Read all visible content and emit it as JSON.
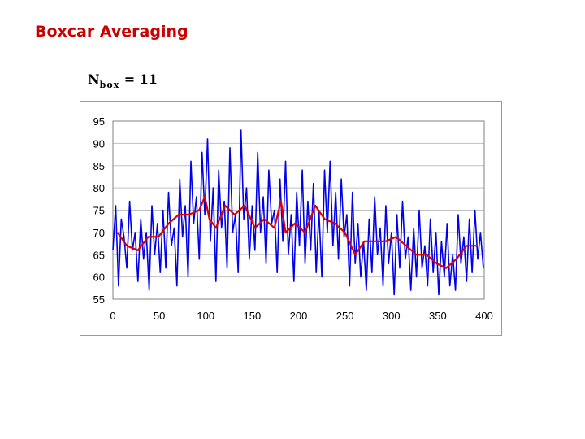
{
  "slide": {
    "title": "Boxcar Averaging",
    "param_symbol": "N",
    "param_subscript": "box",
    "param_equals": "= 11"
  },
  "colors": {
    "title": "#cc0000",
    "raw_series": "#0000ee",
    "averaged_series": "#dd0000",
    "grid": "#c0c0c0"
  },
  "chart_data": {
    "type": "line",
    "title": "",
    "xlabel": "",
    "ylabel": "",
    "xlim": [
      0,
      400
    ],
    "ylim": [
      55,
      95
    ],
    "x_ticks": [
      0,
      50,
      100,
      150,
      200,
      250,
      300,
      350,
      400
    ],
    "y_ticks": [
      55,
      60,
      65,
      70,
      75,
      80,
      85,
      90,
      95
    ],
    "grid": "horizontal",
    "legend": "none",
    "series": [
      {
        "key": "raw",
        "x": [
          0,
          3,
          6,
          9,
          12,
          15,
          18,
          21,
          24,
          27,
          30,
          33,
          36,
          39,
          42,
          45,
          48,
          51,
          54,
          57,
          60,
          63,
          66,
          69,
          72,
          75,
          78,
          81,
          84,
          87,
          90,
          93,
          96,
          99,
          102,
          105,
          108,
          111,
          114,
          117,
          120,
          123,
          126,
          129,
          132,
          135,
          138,
          141,
          144,
          147,
          150,
          153,
          156,
          159,
          162,
          165,
          168,
          171,
          174,
          177,
          180,
          183,
          186,
          189,
          192,
          195,
          198,
          201,
          204,
          207,
          210,
          213,
          216,
          219,
          222,
          225,
          228,
          231,
          234,
          237,
          240,
          243,
          246,
          249,
          252,
          255,
          258,
          261,
          264,
          267,
          270,
          273,
          276,
          279,
          282,
          285,
          288,
          291,
          294,
          297,
          300,
          303,
          306,
          309,
          312,
          315,
          318,
          321,
          324,
          327,
          330,
          333,
          336,
          339,
          342,
          345,
          348,
          351,
          354,
          357,
          360,
          363,
          366,
          369,
          372,
          375,
          378,
          381,
          384,
          387,
          390,
          393,
          396,
          399
        ],
        "values": [
          66,
          76,
          58,
          73,
          69,
          62,
          77,
          66,
          70,
          59,
          73,
          64,
          70,
          57,
          76,
          65,
          72,
          61,
          75,
          62,
          79,
          67,
          71,
          58,
          82,
          69,
          76,
          60,
          86,
          72,
          78,
          64,
          88,
          74,
          91,
          68,
          80,
          59,
          84,
          71,
          77,
          62,
          89,
          70,
          74,
          61,
          93,
          73,
          80,
          64,
          76,
          66,
          88,
          70,
          78,
          63,
          84,
          72,
          75,
          61,
          82,
          68,
          86,
          65,
          74,
          59,
          79,
          67,
          84,
          63,
          77,
          66,
          81,
          61,
          75,
          60,
          84,
          70,
          86,
          67,
          79,
          64,
          82,
          69,
          74,
          58,
          79,
          63,
          72,
          60,
          68,
          57,
          73,
          61,
          78,
          65,
          71,
          58,
          76,
          63,
          70,
          56,
          74,
          62,
          77,
          64,
          69,
          57,
          71,
          60,
          75,
          62,
          67,
          58,
          73,
          61,
          70,
          56,
          68,
          60,
          72,
          58,
          65,
          57,
          74,
          63,
          69,
          59,
          73,
          61,
          75,
          64,
          70,
          62
        ]
      },
      {
        "key": "boxcar",
        "x": [
          5,
          15,
          27,
          38,
          49,
          60,
          71,
          82,
          93,
          99,
          104,
          111,
          121,
          131,
          142,
          153,
          163,
          174,
          181,
          186,
          196,
          207,
          218,
          228,
          239,
          250,
          261,
          271,
          283,
          294,
          305,
          316,
          327,
          338,
          349,
          359,
          370,
          381,
          393
        ],
        "values": [
          70,
          67,
          66,
          69,
          69,
          72,
          74,
          74,
          75,
          78,
          73,
          71,
          76,
          74,
          76,
          71,
          73,
          71,
          77,
          70,
          72,
          70,
          76,
          73,
          72,
          70,
          65,
          68,
          68,
          68,
          69,
          67,
          65,
          65,
          63,
          62,
          64,
          67,
          67
        ]
      }
    ]
  }
}
